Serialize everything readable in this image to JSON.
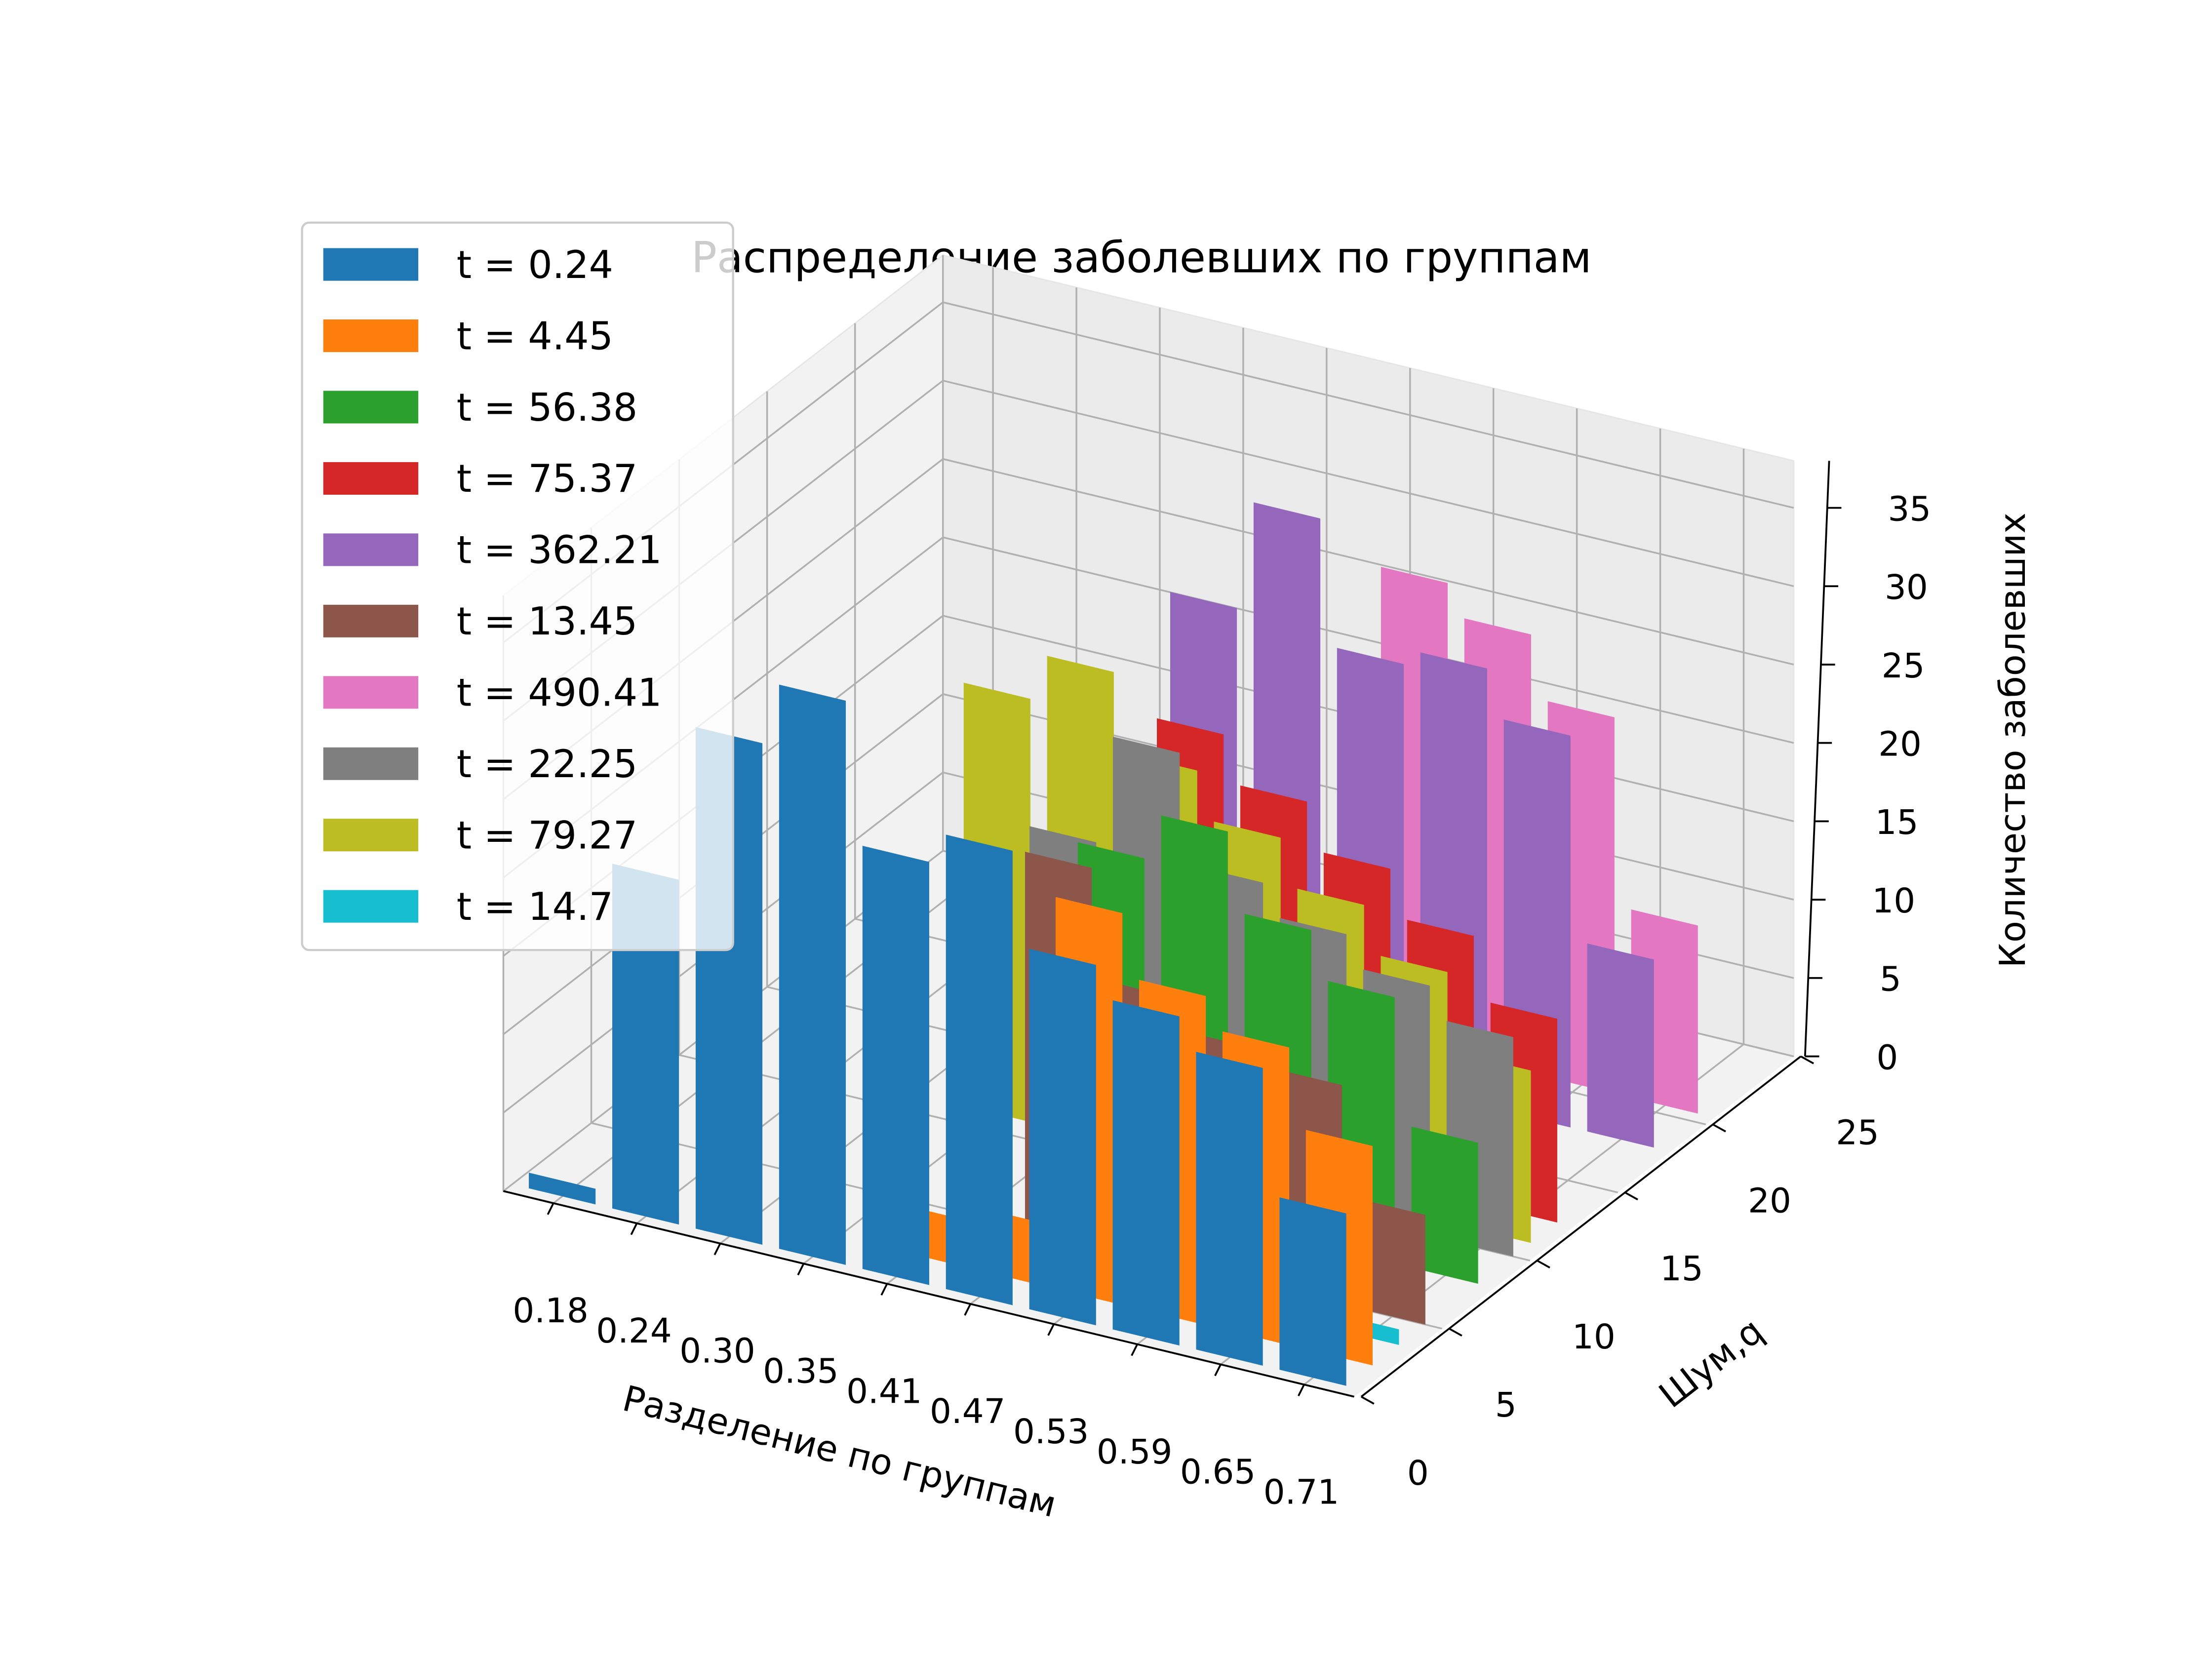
{
  "chart_data": {
    "type": "bar3d",
    "title": "Распределение заболевших по группам",
    "xlabel": "Разделение по группам",
    "ylabel": "Шум,q",
    "zlabel": "Количество заболевших",
    "categories": [
      "0.18",
      "0.24",
      "0.30",
      "0.35",
      "0.41",
      "0.47",
      "0.53",
      "0.59",
      "0.65",
      "0.71"
    ],
    "ylim": [
      0,
      25
    ],
    "yticks": [
      0,
      5,
      10,
      15,
      20,
      25
    ],
    "zlim": [
      0,
      38
    ],
    "zticks": [
      0,
      5,
      10,
      15,
      20,
      25,
      30,
      35
    ],
    "grid": true,
    "legend": "upper left",
    "series": [
      {
        "name": "t = 0.24",
        "color": "#1f77b4",
        "q": 0.5,
        "values": [
          1,
          22,
          32,
          36,
          27,
          29,
          23,
          21,
          19,
          11
        ]
      },
      {
        "name": "t = 4.45",
        "color": "#ff7f0e",
        "q": 2,
        "values": [
          0,
          0,
          0,
          0,
          3,
          4,
          25,
          21,
          19,
          14
        ]
      },
      {
        "name": "t = 56.38",
        "color": "#2ca02c",
        "q": 8,
        "values": [
          0,
          0,
          0,
          0,
          0,
          22,
          25,
          20,
          17,
          9
        ]
      },
      {
        "name": "t = 75.37",
        "color": "#d62728",
        "q": 12.5,
        "values": [
          0,
          0,
          0,
          0,
          0,
          26,
          23,
          20,
          17,
          13
        ]
      },
      {
        "name": "t = 362.21",
        "color": "#9467bd",
        "q": 18,
        "values": [
          0,
          0,
          0,
          0,
          28,
          35,
          27,
          28,
          25,
          12
        ]
      },
      {
        "name": "t = 13.45",
        "color": "#8c564b",
        "q": 5,
        "values": [
          0,
          0,
          0,
          0,
          0,
          24,
          17,
          15,
          14,
          7
        ]
      },
      {
        "name": "t = 490.41",
        "color": "#e377c2",
        "q": 20.5,
        "values": [
          0,
          0,
          0,
          0,
          0,
          0,
          30,
          28,
          24,
          12
        ]
      },
      {
        "name": "t = 22.25",
        "color": "#7f7f7f",
        "q": 10,
        "values": [
          0,
          0,
          0,
          0,
          20,
          27,
          20,
          18,
          16,
          14
        ]
      },
      {
        "name": "t = 79.27",
        "color": "#bcbd22",
        "q": 11,
        "values": [
          0,
          0,
          0,
          27,
          30,
          25,
          22,
          19,
          16,
          11
        ]
      },
      {
        "name": "t = 14.7",
        "color": "#17becf",
        "q": 3.5,
        "values": [
          0,
          0,
          0,
          0,
          0,
          0,
          0,
          0,
          0,
          1
        ]
      }
    ]
  }
}
